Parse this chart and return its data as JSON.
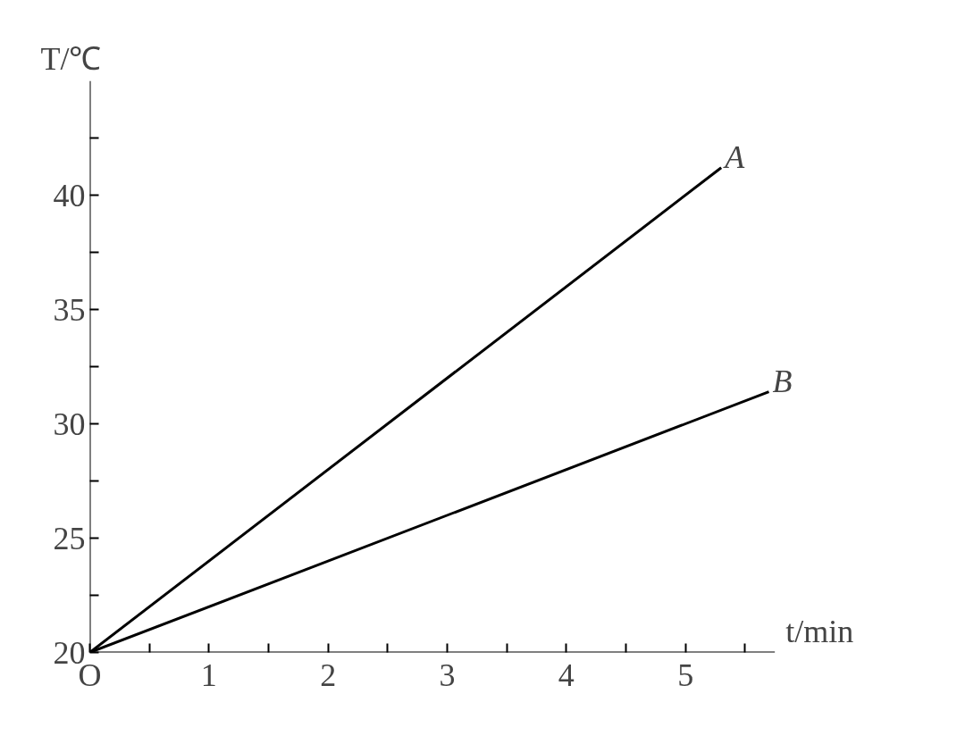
{
  "chart_data": {
    "type": "line",
    "xlabel": "t/min",
    "ylabel": "T/℃",
    "series": [
      {
        "name": "A",
        "color": "#000000",
        "x": [
          0,
          5.3
        ],
        "values": [
          20,
          41.2
        ]
      },
      {
        "name": "B",
        "color": "#000000",
        "x": [
          0,
          5.7
        ],
        "values": [
          20,
          31.4
        ]
      }
    ],
    "xlim": [
      0,
      5.75
    ],
    "ylim": [
      20,
      45
    ],
    "xticks": [
      {
        "value": 0,
        "label": "O"
      },
      {
        "value": 0.5,
        "label": null
      },
      1,
      {
        "value": 1.5,
        "label": null
      },
      2,
      {
        "value": 2.5,
        "label": null
      },
      3,
      {
        "value": 3.5,
        "label": null
      },
      4,
      {
        "value": 4.5,
        "label": null
      },
      5,
      {
        "value": 5.5,
        "label": null
      }
    ],
    "yticks": [
      20,
      {
        "value": 22.5,
        "label": null
      },
      25,
      {
        "value": 27.5,
        "label": null
      },
      30,
      {
        "value": 32.5,
        "label": null
      },
      35,
      {
        "value": 37.5,
        "label": null
      },
      40,
      {
        "value": 42.5,
        "label": null
      }
    ],
    "grid": false,
    "legend": false,
    "marker": "none",
    "line_style": "solid"
  }
}
